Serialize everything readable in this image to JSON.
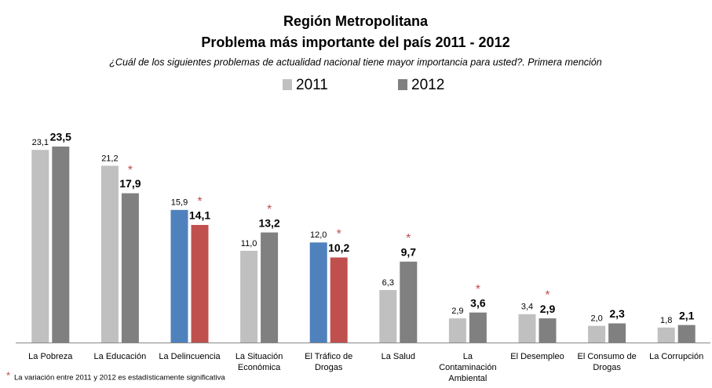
{
  "chart_data": {
    "type": "bar",
    "title": "Región Metropolitana",
    "subtitle": "Problema más importante del país 2011 - 2012",
    "question": "¿Cuál de los siguientes problemas de actualidad nacional tiene mayor importancia para usted?. Primera mención",
    "categories": [
      "La Pobreza",
      "La Educación",
      "La Delincuencia",
      "La Situación Económica",
      "El Tráfico de Drogas",
      "La Salud",
      "La Contaminación Ambiental",
      "El Desempleo",
      "El Consumo de Drogas",
      "La Corrupción"
    ],
    "series": [
      {
        "name": "2011",
        "color": "#c0c0c0",
        "point_colors": [
          "#c0c0c0",
          "#c0c0c0",
          "#4f81bd",
          "#c0c0c0",
          "#4f81bd",
          "#c0c0c0",
          "#c0c0c0",
          "#c0c0c0",
          "#c0c0c0",
          "#c0c0c0"
        ],
        "values": [
          23.1,
          21.2,
          15.9,
          11.0,
          12.0,
          6.3,
          2.9,
          3.4,
          2.0,
          1.8
        ],
        "value_labels": [
          "23,1",
          "21,2",
          "15,9",
          "11,0",
          "12,0",
          "6,3",
          "2,9",
          "3,4",
          "2,0",
          "1,8"
        ]
      },
      {
        "name": "2012",
        "color": "#808080",
        "point_colors": [
          "#808080",
          "#808080",
          "#c0504d",
          "#808080",
          "#c0504d",
          "#808080",
          "#808080",
          "#808080",
          "#808080",
          "#808080"
        ],
        "values": [
          23.5,
          17.9,
          14.1,
          13.2,
          10.2,
          9.7,
          3.6,
          2.9,
          2.3,
          2.1
        ],
        "value_labels": [
          "23,5",
          "17,9",
          "14,1",
          "13,2",
          "10,2",
          "9,7",
          "3,6",
          "2,9",
          "2,3",
          "2,1"
        ]
      }
    ],
    "significance_marker": "*",
    "significant": [
      false,
      true,
      true,
      true,
      true,
      true,
      true,
      true,
      false,
      false
    ],
    "footnote": "La variación entre 2011 y 2012 es estadísticamente significativa"
  }
}
